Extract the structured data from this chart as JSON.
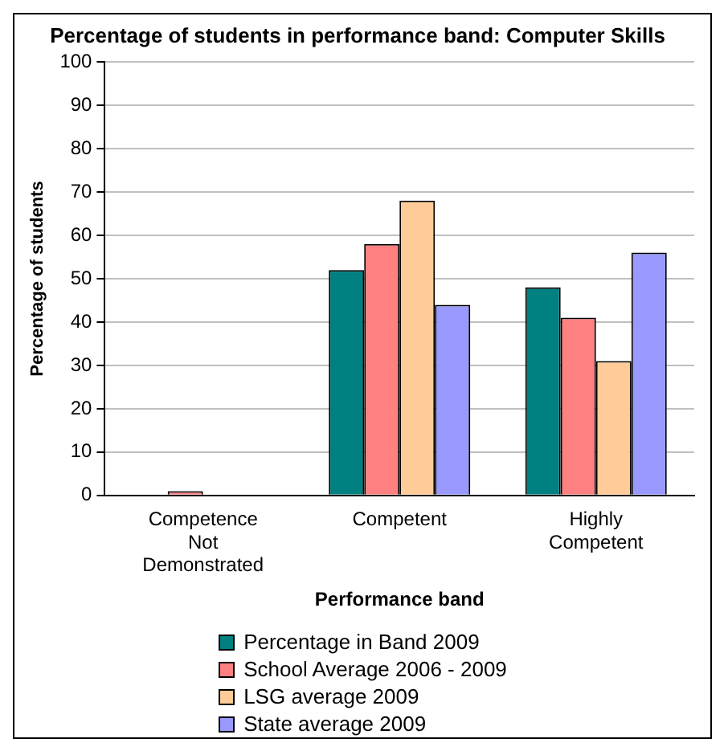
{
  "chart_data": {
    "type": "bar",
    "title": "Percentage of students in performance band: Computer Skills",
    "xlabel": "Performance band",
    "ylabel": "Percentage of students",
    "categories": [
      "Competence Not Demonstrated",
      "Competent",
      "Highly Competent"
    ],
    "series": [
      {
        "name": "Percentage in Band 2009",
        "color": "#008080",
        "values": [
          0,
          52,
          48
        ]
      },
      {
        "name": "School Average 2006 - 2009",
        "color": "#ff8080",
        "values": [
          1,
          58,
          41
        ]
      },
      {
        "name": "LSG average 2009",
        "color": "#ffcc99",
        "values": [
          0,
          68,
          31
        ]
      },
      {
        "name": "State average 2009",
        "color": "#9999ff",
        "values": [
          0,
          44,
          56
        ]
      }
    ],
    "ylim": [
      0,
      100
    ],
    "yticks": [
      0,
      10,
      20,
      30,
      40,
      50,
      60,
      70,
      80,
      90,
      100
    ],
    "grid": "y",
    "legend": "bottom"
  }
}
